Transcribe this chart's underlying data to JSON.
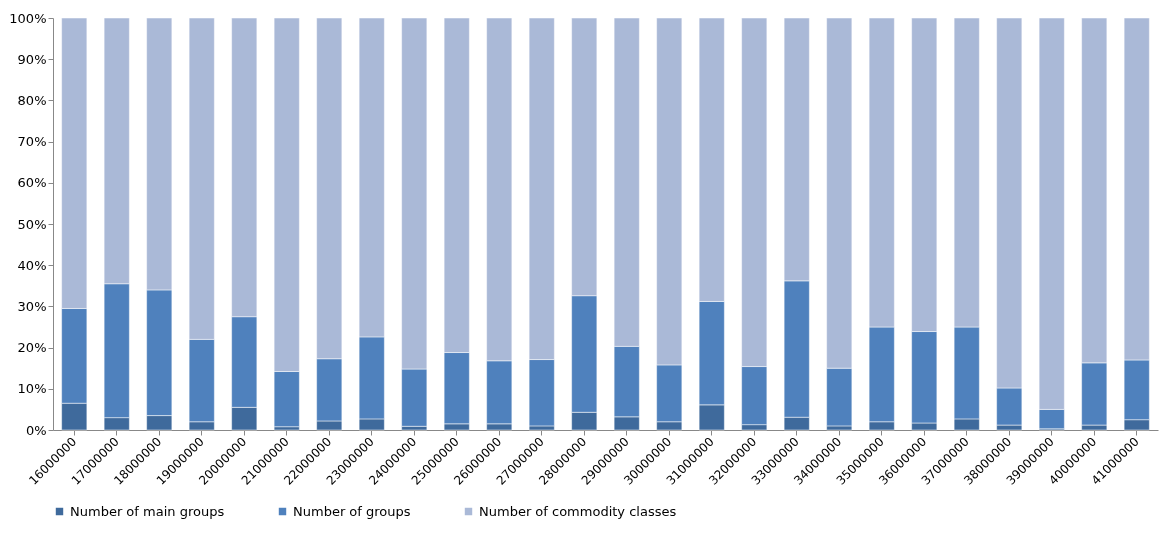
{
  "chart_data": {
    "type": "bar",
    "stacked": true,
    "legend": "bottom",
    "grid": false,
    "categories": [
      "16000000",
      "17000000",
      "18000000",
      "19000000",
      "20000000",
      "21000000",
      "22000000",
      "23000000",
      "24000000",
      "25000000",
      "26000000",
      "27000000",
      "28000000",
      "29000000",
      "30000000",
      "31000000",
      "32000000",
      "33000000",
      "34000000",
      "35000000",
      "36000000",
      "37000000",
      "38000000",
      "39000000",
      "40000000",
      "41000000"
    ],
    "ylim": [
      0,
      100
    ],
    "yticks": [
      {
        "value": 0,
        "label": "0%"
      },
      {
        "value": 10,
        "label": "10%"
      },
      {
        "value": 20,
        "label": "20%"
      },
      {
        "value": 30,
        "label": "30%"
      },
      {
        "value": 40,
        "label": "40%"
      },
      {
        "value": 50,
        "label": "50%"
      },
      {
        "value": 60,
        "label": "60%"
      },
      {
        "value": 70,
        "label": "70%"
      },
      {
        "value": 80,
        "label": "80%"
      },
      {
        "value": 90,
        "label": "90%"
      },
      {
        "value": 100,
        "label": "100%"
      }
    ],
    "series": [
      {
        "name": "Number of main groups",
        "color": "#3f6a9c",
        "values": [
          6.5,
          3.0,
          3.5,
          2.0,
          5.5,
          0.8,
          2.2,
          2.7,
          0.9,
          1.5,
          1.5,
          1.0,
          4.3,
          3.2,
          2.0,
          6.1,
          1.3,
          3.1,
          1.0,
          2.0,
          1.7,
          2.7,
          1.2,
          0.3,
          1.2,
          2.5
        ]
      },
      {
        "name": "Number of groups",
        "color": "#4f81bd",
        "values": [
          23.0,
          32.5,
          30.5,
          20.0,
          22.0,
          13.4,
          15.1,
          19.9,
          13.9,
          17.3,
          15.3,
          16.1,
          28.3,
          17.1,
          13.8,
          25.1,
          14.1,
          33.1,
          14.0,
          23.0,
          22.2,
          22.3,
          9.0,
          4.7,
          15.1,
          14.5
        ]
      },
      {
        "name": "Number of commodity classes",
        "color": "#aab9d7",
        "values": [
          70.5,
          64.5,
          66.0,
          78.0,
          72.5,
          85.8,
          82.7,
          77.4,
          85.2,
          81.2,
          83.2,
          82.9,
          67.4,
          79.7,
          84.2,
          68.8,
          84.6,
          63.8,
          85.0,
          75.0,
          76.1,
          75.0,
          89.8,
          95.0,
          83.7,
          83.0
        ]
      }
    ]
  }
}
